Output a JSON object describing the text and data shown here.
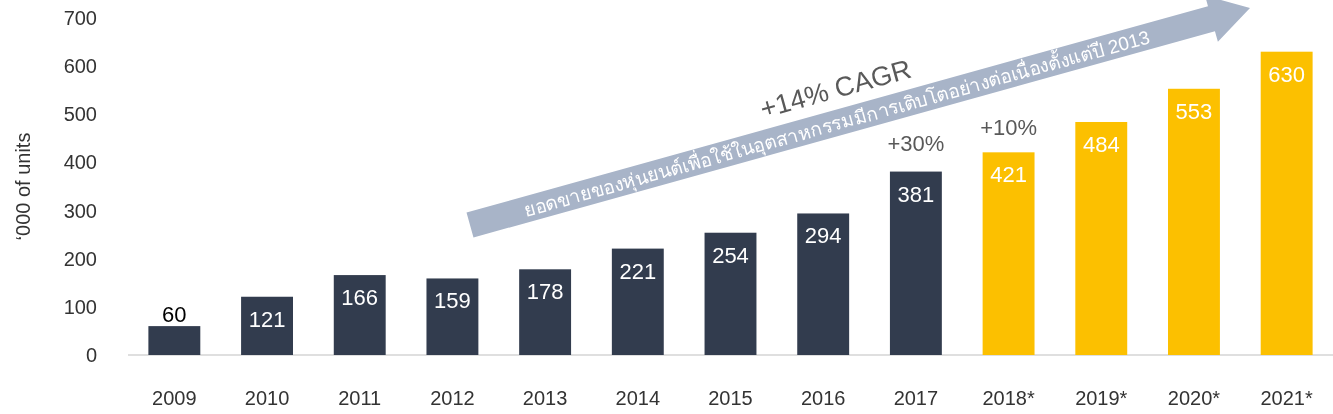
{
  "chart_data": {
    "type": "bar",
    "ylabel": "‘000 of units",
    "categories": [
      "2009",
      "2010",
      "2011",
      "2012",
      "2013",
      "2014",
      "2015",
      "2016",
      "2017",
      "2018*",
      "2019*",
      "2020*",
      "2021*"
    ],
    "values": [
      60,
      121,
      166,
      159,
      178,
      221,
      254,
      294,
      381,
      421,
      484,
      553,
      630
    ],
    "colors": [
      "#323c4e",
      "#323c4e",
      "#323c4e",
      "#323c4e",
      "#323c4e",
      "#323c4e",
      "#323c4e",
      "#323c4e",
      "#323c4e",
      "#fcc000",
      "#fcc000",
      "#fcc000",
      "#fcc000"
    ],
    "ylim": [
      0,
      700
    ],
    "yticks": [
      0,
      100,
      200,
      300,
      400,
      500,
      600,
      700
    ],
    "data_labels": true,
    "annotations": [
      "+14% CAGR",
      "ยอดขายของหุ่นยนต์เพื่อใช้ในอุตสาหกรรมมีการเติบโตอย่างต่อเนื่องตั้งแต่ปี 2013",
      "+30%",
      "+10%"
    ]
  }
}
